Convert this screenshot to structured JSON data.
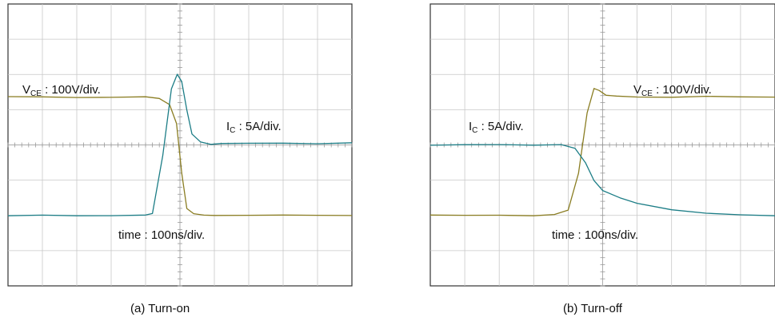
{
  "chart_data": [
    {
      "type": "line",
      "title": "",
      "caption": "(a) Turn-on",
      "time_label": "time : 100ns/div.",
      "x_divisions": 10,
      "y_divisions": 8,
      "x_range_div": [
        0,
        10
      ],
      "y_range_div": [
        0,
        8
      ],
      "grid": true,
      "trace_colors": {
        "VCE": "#8a7d22",
        "IC": "#1c7d86"
      },
      "annotations": [
        {
          "trace": "VCE",
          "main": "V",
          "sub": "CE",
          "rest": " : 100V/div."
        },
        {
          "trace": "IC",
          "main": "I",
          "sub": "C",
          "rest": " : 5A/div."
        }
      ],
      "series": [
        {
          "name": "VCE",
          "x_div": [
            0,
            1.0,
            2.0,
            3.0,
            4.0,
            4.4,
            4.7,
            4.9,
            5.05,
            5.2,
            5.4,
            5.7,
            6.0,
            7.0,
            8.0,
            9.0,
            10.0
          ],
          "y_div": [
            5.36,
            5.36,
            5.35,
            5.36,
            5.36,
            5.32,
            5.15,
            4.6,
            3.2,
            2.2,
            2.06,
            2.0,
            2.0,
            2.01,
            2.0,
            2.0,
            2.0
          ]
        },
        {
          "name": "IC",
          "x_div": [
            0,
            1.0,
            2.0,
            3.0,
            4.0,
            4.2,
            4.5,
            4.75,
            4.92,
            5.05,
            5.2,
            5.35,
            5.6,
            5.9,
            6.2,
            7.0,
            8.0,
            9.0,
            10.0
          ],
          "y_div": [
            2.0,
            2.0,
            1.99,
            2.0,
            2.0,
            2.05,
            3.7,
            5.6,
            6.0,
            5.8,
            5.0,
            4.3,
            4.08,
            4.02,
            4.05,
            4.04,
            4.05,
            4.04,
            4.05
          ]
        }
      ]
    },
    {
      "type": "line",
      "title": "",
      "caption": "(b) Turn-off",
      "time_label": "time : 100ns/div.",
      "x_divisions": 10,
      "y_divisions": 8,
      "x_range_div": [
        0,
        10
      ],
      "y_range_div": [
        0,
        8
      ],
      "grid": true,
      "trace_colors": {
        "VCE": "#8a7d22",
        "IC": "#1c7d86"
      },
      "annotations": [
        {
          "trace": "VCE",
          "main": "V",
          "sub": "CE",
          "rest": " : 100V/div."
        },
        {
          "trace": "IC",
          "main": "I",
          "sub": "C",
          "rest": " : 5A/div."
        }
      ],
      "series": [
        {
          "name": "VCE",
          "x_div": [
            0,
            1.0,
            2.0,
            3.0,
            3.6,
            4.0,
            4.3,
            4.55,
            4.75,
            4.9,
            5.1,
            5.4,
            6.0,
            7.0,
            8.0,
            9.0,
            10.0
          ],
          "y_div": [
            2.0,
            2.0,
            2.01,
            2.0,
            2.02,
            2.15,
            3.2,
            4.9,
            5.6,
            5.55,
            5.42,
            5.38,
            5.36,
            5.36,
            5.37,
            5.36,
            5.36
          ]
        },
        {
          "name": "IC",
          "x_div": [
            0,
            1.0,
            2.0,
            3.0,
            3.8,
            4.2,
            4.5,
            4.75,
            5.0,
            5.5,
            6.0,
            7.0,
            8.0,
            9.0,
            10.0
          ],
          "y_div": [
            4.0,
            4.0,
            4.01,
            4.0,
            4.0,
            3.9,
            3.5,
            3.0,
            2.7,
            2.5,
            2.35,
            2.15,
            2.06,
            2.02,
            2.0
          ]
        }
      ]
    }
  ]
}
